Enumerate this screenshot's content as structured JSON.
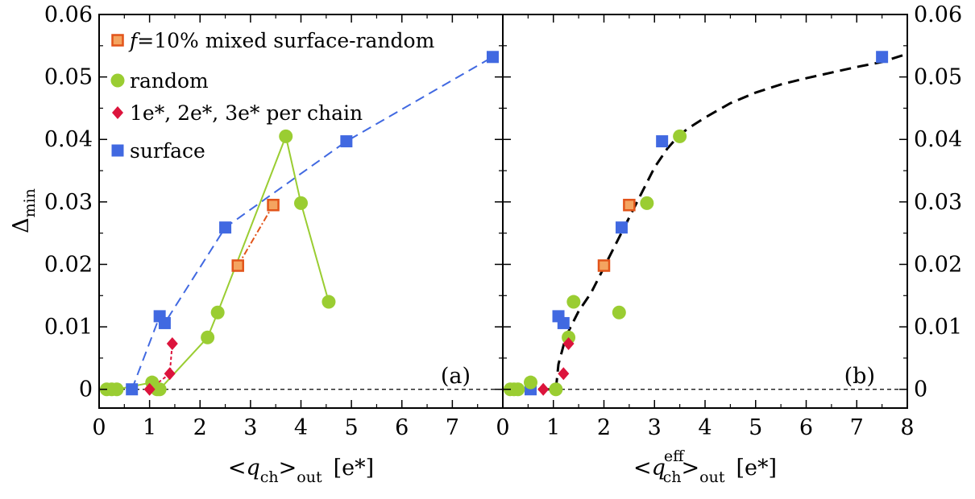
{
  "chart_data": [
    {
      "panel": "(a)",
      "type": "scatter",
      "xlabel": {
        "prefix": "<",
        "var": "q",
        "sub": "ch",
        "sup": "",
        "suffix": ">",
        "sub2": "out",
        "unit": "[e*]"
      },
      "ylabel": {
        "main": "Δ",
        "sub": "min"
      },
      "xlim": [
        0,
        8
      ],
      "ylim": [
        -0.003,
        0.06
      ],
      "xticks": [
        "0",
        "1",
        "2",
        "3",
        "4",
        "5",
        "6",
        "7"
      ],
      "yticks": [
        "0",
        "0.01",
        "0.02",
        "0.03",
        "0.04",
        "0.05",
        "0.06"
      ],
      "legend": [
        {
          "key": "mixed",
          "prefix": "f",
          "text": "=10% mixed surface-random"
        },
        {
          "key": "random",
          "prefix": "",
          "text": "random"
        },
        {
          "key": "charged",
          "prefix": "",
          "text": "1e*, 2e*, 3e* per chain"
        },
        {
          "key": "surface",
          "prefix": "",
          "text": "surface"
        }
      ],
      "series": [
        {
          "key": "surface",
          "line": true,
          "points": [
            [
              0.65,
              0
            ],
            [
              1.2,
              0.0117
            ],
            [
              1.3,
              0.0106
            ],
            [
              2.5,
              0.0259
            ],
            [
              4.9,
              0.0397
            ],
            [
              7.8,
              0.0532
            ]
          ]
        },
        {
          "key": "random",
          "line": true,
          "points": [
            [
              0.15,
              0
            ],
            [
              0.25,
              0
            ],
            [
              0.35,
              0
            ],
            [
              1.05,
              0.0011
            ],
            [
              1.15,
              0
            ],
            [
              1.2,
              0
            ],
            [
              2.15,
              0.0083
            ],
            [
              2.35,
              0.0123
            ],
            [
              3.7,
              0.0405
            ],
            [
              4.0,
              0.0298
            ],
            [
              4.55,
              0.014
            ]
          ]
        },
        {
          "key": "charged",
          "line": true,
          "points": [
            [
              1.0,
              0
            ],
            [
              1.4,
              0.0025
            ],
            [
              1.45,
              0.0073
            ]
          ]
        },
        {
          "key": "mixed",
          "line": true,
          "points": [
            [
              2.75,
              0.0198
            ],
            [
              3.45,
              0.0295
            ]
          ]
        }
      ]
    },
    {
      "panel": "(b)",
      "type": "scatter",
      "xlabel": {
        "prefix": "<",
        "var": "q",
        "sub": "ch",
        "sup": "eff",
        "suffix": ">",
        "sub2": "out",
        "unit": "[e*]"
      },
      "xlim": [
        0,
        8
      ],
      "ylim": [
        -0.003,
        0.06
      ],
      "xticks": [
        "0",
        "1",
        "2",
        "3",
        "4",
        "5",
        "6",
        "7",
        "8"
      ],
      "yticks": [
        "0",
        "0.01",
        "0.02",
        "0.03",
        "0.04",
        "0.05",
        "0.06"
      ],
      "fit_curve": [
        [
          0,
          0
        ],
        [
          1.05,
          0
        ],
        [
          1.1,
          0.004
        ],
        [
          1.25,
          0.0085
        ],
        [
          1.5,
          0.0125
        ],
        [
          1.75,
          0.0155
        ],
        [
          2.0,
          0.0195
        ],
        [
          2.25,
          0.0235
        ],
        [
          2.5,
          0.0275
        ],
        [
          2.75,
          0.0315
        ],
        [
          3.0,
          0.0355
        ],
        [
          3.25,
          0.0385
        ],
        [
          3.5,
          0.0408
        ],
        [
          3.75,
          0.0422
        ],
        [
          4.0,
          0.0435
        ],
        [
          4.5,
          0.0458
        ],
        [
          5.0,
          0.0475
        ],
        [
          5.5,
          0.0488
        ],
        [
          6.0,
          0.0498
        ],
        [
          6.5,
          0.0507
        ],
        [
          7.0,
          0.0516
        ],
        [
          7.5,
          0.0524
        ],
        [
          8.0,
          0.0537
        ]
      ],
      "series": [
        {
          "key": "surface",
          "line": false,
          "points": [
            [
              0.55,
              0
            ],
            [
              1.1,
              0.0117
            ],
            [
              1.2,
              0.0106
            ],
            [
              2.35,
              0.0259
            ],
            [
              3.15,
              0.0397
            ],
            [
              7.5,
              0.0532
            ]
          ]
        },
        {
          "key": "random",
          "line": false,
          "points": [
            [
              0.15,
              0
            ],
            [
              0.22,
              0
            ],
            [
              0.3,
              0
            ],
            [
              0.55,
              0.0011
            ],
            [
              1.05,
              0
            ],
            [
              1.3,
              0.0083
            ],
            [
              1.4,
              0.014
            ],
            [
              2.3,
              0.0123
            ],
            [
              2.85,
              0.0298
            ],
            [
              3.5,
              0.0405
            ]
          ]
        },
        {
          "key": "charged",
          "line": false,
          "points": [
            [
              0.8,
              0
            ],
            [
              1.2,
              0.0025
            ],
            [
              1.3,
              0.0073
            ]
          ]
        },
        {
          "key": "mixed",
          "line": false,
          "points": [
            [
              2.0,
              0.0198
            ],
            [
              2.5,
              0.0295
            ]
          ]
        }
      ]
    }
  ],
  "styles": {
    "surface": {
      "color": "#4169e1",
      "marker": "square",
      "dash": "12,7"
    },
    "random": {
      "color": "#9acd32",
      "marker": "circle",
      "dash": ""
    },
    "charged": {
      "color": "#dc143c",
      "marker": "diamond",
      "dash": "4,3"
    },
    "mixed": {
      "color": "#f4a460",
      "edge": "#e2541a",
      "marker": "hollow-square",
      "dash": "8,3,2,3"
    },
    "fit": {
      "color": "#000000",
      "dash": "14,8"
    }
  }
}
